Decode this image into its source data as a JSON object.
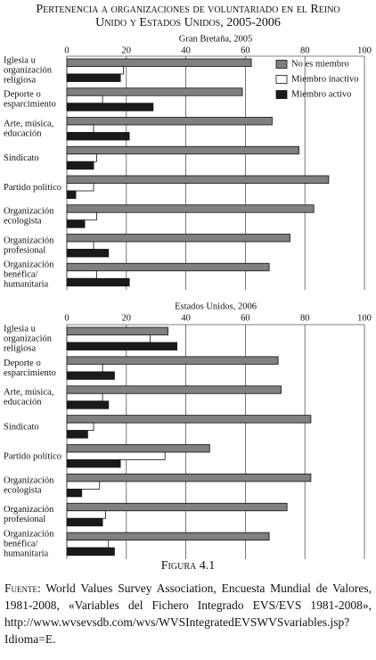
{
  "heading": "Pertenencia a organizaciones de voluntariado en el Reino Unido y Estados Unidos, 2005-2006",
  "chart_data": [
    {
      "type": "bar",
      "orientation": "horizontal",
      "title": "Gran Bretaña, 2005",
      "categories": [
        "Iglesia u\norganización\nreligiosa",
        "Deporte o\nesparcimiento",
        "Arte, música,\neducación",
        "Sindicato",
        "Partido político",
        "Organización\necologista",
        "Organización\nprofesional",
        "Organización\nbenéfica/\nhumanitaria"
      ],
      "series": [
        {
          "name": "No es miembro",
          "color": "#808080",
          "values": [
            62,
            59,
            69,
            78,
            88,
            83,
            75,
            68
          ]
        },
        {
          "name": "Miembro inactivo",
          "color": "#ffffff",
          "values": [
            19,
            12,
            9,
            10,
            9,
            10,
            9,
            10
          ]
        },
        {
          "name": "Miembro activo",
          "color": "#1a1a1a",
          "values": [
            18,
            29,
            21,
            9,
            3,
            6,
            14,
            21
          ]
        }
      ],
      "xlim": [
        0,
        100
      ],
      "xticks": [
        0,
        20,
        40,
        60,
        80,
        100
      ],
      "grid": true,
      "legend": "upper right"
    },
    {
      "type": "bar",
      "orientation": "horizontal",
      "title": "Estados Unidos, 2006",
      "categories": [
        "Iglesia u\norganización\nreligiosa",
        "Deporte o\nesparcimiento",
        "Arte, música,\neducación",
        "Sindicato",
        "Partido político",
        "Organización\necologista",
        "Organización\nprofesional",
        "Organización\nbenéfica/\nhumanitaria"
      ],
      "series": [
        {
          "color": "#808080",
          "values": [
            34,
            71,
            72,
            82,
            48,
            82,
            74,
            68
          ]
        },
        {
          "color": "#ffffff",
          "values": [
            28,
            12,
            12,
            9,
            33,
            11,
            13,
            14
          ]
        },
        {
          "color": "#1a1a1a",
          "values": [
            37,
            16,
            14,
            7,
            18,
            5,
            12,
            16
          ]
        }
      ],
      "xlim": [
        0,
        100
      ],
      "xticks": [
        0,
        20,
        40,
        60,
        80,
        100
      ],
      "grid": true
    }
  ],
  "figure_caption": "Figura 4.1",
  "source": {
    "label": "Fuente:",
    "text": "World Values Survey Association, Encuesta Mundial de Valores, 1981-2008, «Variables del Fichero Integrado EVS/EVS 1981-2008», http://www.wvsevsdb.com/wvs/WVSIntegratedEVSWVSvariables.jsp?Idioma=E."
  }
}
